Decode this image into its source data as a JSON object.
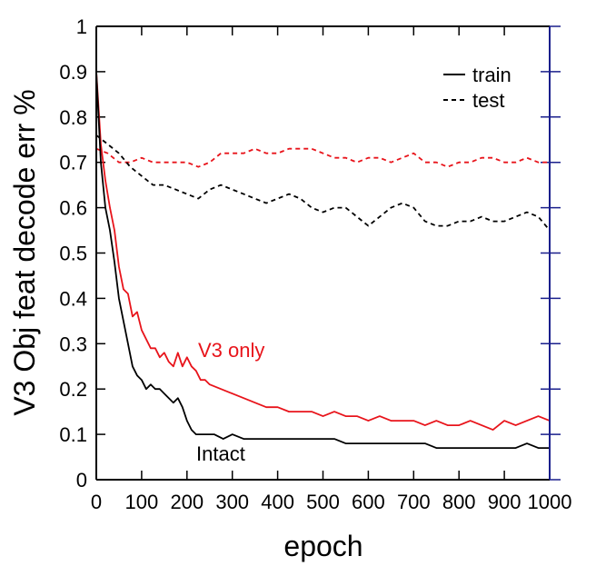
{
  "chart_data": {
    "type": "line",
    "xlabel": "epoch",
    "ylabel": "V3 Obj feat decode err %",
    "xlim": [
      0,
      1000
    ],
    "ylim": [
      0,
      1
    ],
    "xticks": [
      0,
      100,
      200,
      300,
      400,
      500,
      600,
      700,
      800,
      900,
      1000
    ],
    "yticks": [
      0,
      0.1,
      0.2,
      0.3,
      0.4,
      0.5,
      0.6,
      0.7,
      0.8,
      0.9,
      1
    ],
    "ytick_labels": [
      "0",
      "0.1",
      "0.2",
      "0.3",
      "0.4",
      "0.5",
      "0.6",
      "0.7",
      "0.8",
      "0.9",
      "1"
    ],
    "legend": {
      "position": "top-right",
      "entries": [
        {
          "label": "train",
          "style": "solid"
        },
        {
          "label": "test",
          "style": "dashed"
        }
      ]
    },
    "annotations": [
      {
        "text": "V3 only",
        "color": "#e8141b"
      },
      {
        "text": "Intact",
        "color": "#000000"
      }
    ],
    "series": [
      {
        "color": "#e8141b",
        "style": "dashed",
        "x": [
          0,
          25,
          50,
          75,
          100,
          125,
          150,
          175,
          200,
          225,
          250,
          275,
          300,
          325,
          350,
          375,
          400,
          425,
          450,
          475,
          500,
          525,
          550,
          575,
          600,
          625,
          650,
          675,
          700,
          725,
          750,
          775,
          800,
          825,
          850,
          875,
          900,
          925,
          950,
          975,
          1000
        ],
        "y": [
          0.73,
          0.72,
          0.7,
          0.7,
          0.71,
          0.7,
          0.7,
          0.7,
          0.7,
          0.69,
          0.7,
          0.72,
          0.72,
          0.72,
          0.73,
          0.72,
          0.72,
          0.73,
          0.73,
          0.73,
          0.72,
          0.71,
          0.71,
          0.7,
          0.71,
          0.71,
          0.7,
          0.71,
          0.72,
          0.7,
          0.7,
          0.69,
          0.7,
          0.7,
          0.71,
          0.71,
          0.7,
          0.7,
          0.71,
          0.7,
          0.7
        ]
      },
      {
        "color": "#000000",
        "style": "dashed",
        "x": [
          0,
          25,
          50,
          75,
          100,
          125,
          150,
          175,
          200,
          225,
          250,
          275,
          300,
          325,
          350,
          375,
          400,
          425,
          450,
          475,
          500,
          525,
          550,
          575,
          600,
          625,
          650,
          675,
          700,
          725,
          750,
          775,
          800,
          825,
          850,
          875,
          900,
          925,
          950,
          975,
          1000
        ],
        "y": [
          0.76,
          0.74,
          0.72,
          0.69,
          0.67,
          0.65,
          0.65,
          0.64,
          0.63,
          0.62,
          0.64,
          0.65,
          0.64,
          0.63,
          0.62,
          0.61,
          0.62,
          0.63,
          0.62,
          0.6,
          0.59,
          0.6,
          0.6,
          0.58,
          0.56,
          0.58,
          0.6,
          0.61,
          0.6,
          0.57,
          0.56,
          0.56,
          0.57,
          0.57,
          0.58,
          0.57,
          0.57,
          0.58,
          0.59,
          0.58,
          0.55
        ]
      },
      {
        "color": "#e8141b",
        "style": "solid",
        "x": [
          0,
          10,
          20,
          30,
          40,
          50,
          60,
          70,
          80,
          90,
          100,
          110,
          120,
          130,
          140,
          150,
          160,
          170,
          180,
          190,
          200,
          210,
          220,
          230,
          240,
          250,
          275,
          300,
          325,
          350,
          375,
          400,
          425,
          450,
          475,
          500,
          525,
          550,
          575,
          600,
          625,
          650,
          675,
          700,
          725,
          750,
          775,
          800,
          825,
          850,
          875,
          900,
          925,
          950,
          975,
          1000
        ],
        "y": [
          0.9,
          0.74,
          0.66,
          0.6,
          0.55,
          0.47,
          0.42,
          0.41,
          0.36,
          0.37,
          0.33,
          0.31,
          0.29,
          0.29,
          0.27,
          0.28,
          0.26,
          0.25,
          0.28,
          0.25,
          0.27,
          0.25,
          0.24,
          0.22,
          0.22,
          0.21,
          0.2,
          0.19,
          0.18,
          0.17,
          0.16,
          0.16,
          0.15,
          0.15,
          0.15,
          0.14,
          0.15,
          0.14,
          0.14,
          0.13,
          0.14,
          0.13,
          0.13,
          0.13,
          0.12,
          0.13,
          0.12,
          0.12,
          0.13,
          0.12,
          0.11,
          0.13,
          0.12,
          0.13,
          0.14,
          0.13
        ]
      },
      {
        "color": "#000000",
        "style": "solid",
        "x": [
          0,
          10,
          20,
          30,
          40,
          50,
          60,
          70,
          80,
          90,
          100,
          110,
          120,
          130,
          140,
          150,
          160,
          170,
          180,
          190,
          200,
          210,
          220,
          240,
          260,
          280,
          300,
          325,
          350,
          375,
          400,
          425,
          450,
          475,
          500,
          525,
          550,
          575,
          600,
          625,
          650,
          675,
          700,
          725,
          750,
          775,
          800,
          825,
          850,
          875,
          900,
          925,
          950,
          975,
          1000
        ],
        "y": [
          0.9,
          0.7,
          0.6,
          0.55,
          0.48,
          0.4,
          0.35,
          0.3,
          0.25,
          0.23,
          0.22,
          0.2,
          0.21,
          0.2,
          0.2,
          0.19,
          0.18,
          0.17,
          0.18,
          0.16,
          0.13,
          0.11,
          0.1,
          0.1,
          0.1,
          0.09,
          0.1,
          0.09,
          0.09,
          0.09,
          0.09,
          0.09,
          0.09,
          0.09,
          0.09,
          0.09,
          0.08,
          0.08,
          0.08,
          0.08,
          0.08,
          0.08,
          0.08,
          0.08,
          0.07,
          0.07,
          0.07,
          0.07,
          0.07,
          0.07,
          0.07,
          0.07,
          0.08,
          0.07,
          0.07
        ]
      }
    ]
  }
}
